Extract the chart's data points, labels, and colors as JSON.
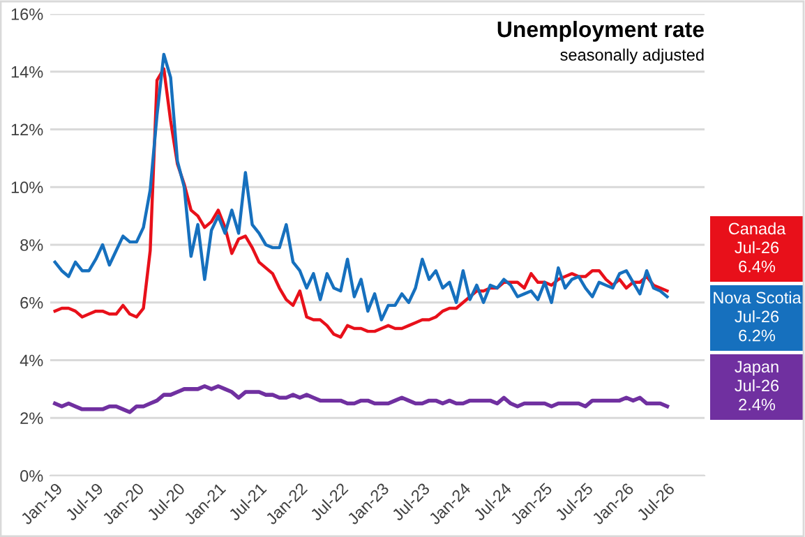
{
  "chart_data": {
    "type": "line",
    "title": "Unemployment rate",
    "subtitle": "seasonally adjusted",
    "categories": [
      "Jan-19",
      null,
      null,
      null,
      null,
      null,
      "Jul-19",
      null,
      null,
      null,
      null,
      null,
      "Jan-20",
      null,
      null,
      null,
      null,
      null,
      "Jul-20",
      null,
      null,
      null,
      null,
      null,
      "Jan-21",
      null,
      null,
      null,
      null,
      null,
      "Jul-21",
      null,
      null,
      null,
      null,
      null,
      "Jan-22",
      null,
      null,
      null,
      null,
      null,
      "Jul-22",
      null,
      null,
      null,
      null,
      null,
      "Jan-23",
      null,
      null,
      null,
      null,
      null,
      "Jul-23",
      null,
      null,
      null,
      null,
      null,
      "Jan-24",
      null,
      null,
      null,
      null,
      null,
      "Jul-24",
      null,
      null,
      null,
      null,
      null,
      "Jan-25",
      null,
      null,
      null,
      null,
      null,
      "Jul-25",
      null,
      null,
      null,
      null,
      null,
      "Jan-26",
      null,
      null,
      null,
      null,
      null,
      "Jul-26"
    ],
    "series": [
      {
        "name": "Canada",
        "color": "#e8101a",
        "values": [
          5.7,
          5.8,
          5.8,
          5.7,
          5.5,
          5.6,
          5.7,
          5.7,
          5.6,
          5.6,
          5.9,
          5.6,
          5.5,
          5.8,
          7.8,
          13.7,
          14.1,
          12.3,
          10.8,
          10.1,
          9.2,
          9.0,
          8.6,
          8.8,
          9.2,
          8.6,
          7.7,
          8.2,
          8.3,
          7.9,
          7.4,
          7.2,
          7.0,
          6.5,
          6.1,
          5.9,
          6.4,
          5.5,
          5.4,
          5.4,
          5.2,
          4.9,
          4.8,
          5.2,
          5.1,
          5.1,
          5.0,
          5.0,
          5.1,
          5.2,
          5.1,
          5.1,
          5.2,
          5.3,
          5.4,
          5.4,
          5.5,
          5.7,
          5.8,
          5.8,
          6.0,
          6.2,
          6.4,
          6.4,
          6.5,
          6.5,
          6.7,
          6.7,
          6.7,
          6.5,
          7.0,
          6.7,
          6.7,
          6.6,
          6.8,
          6.9,
          7.0,
          6.9,
          6.9,
          7.1,
          7.1,
          6.8,
          6.6,
          6.8,
          6.5,
          6.7,
          6.7,
          6.9,
          6.6,
          6.5,
          6.4
        ]
      },
      {
        "name": "Nova Scotia",
        "color": "#1670be",
        "values": [
          7.4,
          7.1,
          6.9,
          7.4,
          7.1,
          7.1,
          7.5,
          8.0,
          7.3,
          7.8,
          8.3,
          8.1,
          8.1,
          8.6,
          9.9,
          12.5,
          14.6,
          13.8,
          10.9,
          10.0,
          7.6,
          8.7,
          6.8,
          8.5,
          9.0,
          8.4,
          9.2,
          8.4,
          10.5,
          8.7,
          8.4,
          8.0,
          7.9,
          7.9,
          8.7,
          7.4,
          7.1,
          6.5,
          7.0,
          6.1,
          7.0,
          6.5,
          6.4,
          7.5,
          6.2,
          6.8,
          5.7,
          6.3,
          5.4,
          5.9,
          5.9,
          6.3,
          6.0,
          6.5,
          7.5,
          6.8,
          7.1,
          6.5,
          6.7,
          6.0,
          7.1,
          6.1,
          6.6,
          6.0,
          6.6,
          6.5,
          6.8,
          6.6,
          6.2,
          6.3,
          6.4,
          6.1,
          6.7,
          6.0,
          7.2,
          6.5,
          6.8,
          6.9,
          6.5,
          6.2,
          6.7,
          6.6,
          6.5,
          7.0,
          7.1,
          6.7,
          6.3,
          7.1,
          6.5,
          6.4,
          6.2
        ]
      },
      {
        "name": "Japan",
        "color": "#7030a0",
        "values": [
          2.5,
          2.4,
          2.5,
          2.4,
          2.3,
          2.3,
          2.3,
          2.3,
          2.4,
          2.4,
          2.3,
          2.2,
          2.4,
          2.4,
          2.5,
          2.6,
          2.8,
          2.8,
          2.9,
          3.0,
          3.0,
          3.0,
          3.1,
          3.0,
          3.1,
          3.0,
          2.9,
          2.7,
          2.9,
          2.9,
          2.9,
          2.8,
          2.8,
          2.7,
          2.7,
          2.8,
          2.7,
          2.8,
          2.7,
          2.6,
          2.6,
          2.6,
          2.6,
          2.5,
          2.5,
          2.6,
          2.6,
          2.5,
          2.5,
          2.5,
          2.6,
          2.7,
          2.6,
          2.5,
          2.5,
          2.6,
          2.6,
          2.5,
          2.6,
          2.5,
          2.5,
          2.6,
          2.6,
          2.6,
          2.6,
          2.5,
          2.7,
          2.5,
          2.4,
          2.5,
          2.5,
          2.5,
          2.5,
          2.4,
          2.5,
          2.5,
          2.5,
          2.5,
          2.4,
          2.6,
          2.6,
          2.6,
          2.6,
          2.6,
          2.7,
          2.6,
          2.7,
          2.5,
          2.5,
          2.5,
          2.4
        ]
      }
    ],
    "annotations": [
      "Jul-26\n6.4%",
      "Jul-26\n6.2%",
      "Jul-26\n2.4%"
    ],
    "ylim": [
      0,
      16
    ],
    "yticks": [
      {
        "value": 0,
        "label": "0%"
      },
      {
        "value": 2,
        "label": "2%"
      },
      {
        "value": 4,
        "label": "4%"
      },
      {
        "value": 6,
        "label": "6%"
      },
      {
        "value": 8,
        "label": "8%"
      },
      {
        "value": 10,
        "label": "10%"
      },
      {
        "value": 12,
        "label": "12%"
      },
      {
        "value": 14,
        "label": "14%"
      },
      {
        "value": 16,
        "label": "16%"
      }
    ],
    "grid": "y",
    "legend": "right",
    "marker": "none",
    "line_style": "solid"
  }
}
